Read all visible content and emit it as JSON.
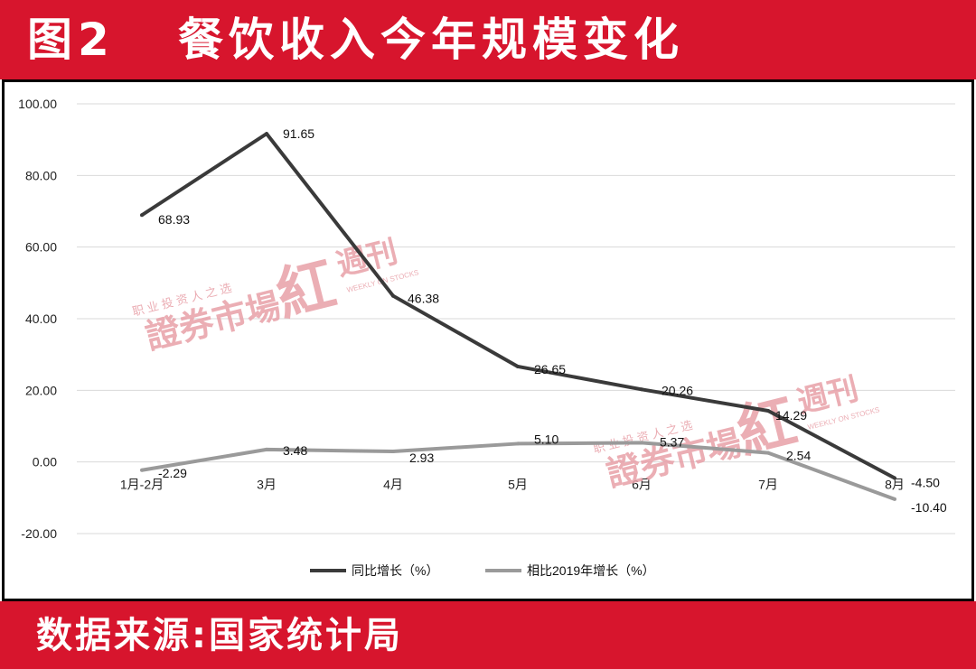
{
  "header": {
    "title": "图2   餐饮收入今年规模变化"
  },
  "footer": {
    "source": "数据来源:国家统计局"
  },
  "colors": {
    "banner": "#d7152d",
    "series1": "#3a3a3a",
    "series2": "#9a9a9a",
    "watermark": "#e8a0a8"
  },
  "watermark": {
    "line1": "职 业 投 资 人 之 选",
    "brand": "證券市場",
    "mark": "紅",
    "weekly": "週刊",
    "english": "WEEKLY ON STOCKS"
  },
  "chart_data": {
    "type": "line",
    "categories": [
      "1月-2月",
      "3月",
      "4月",
      "5月",
      "6月",
      "7月",
      "8月"
    ],
    "series": [
      {
        "name": "同比增长（%）",
        "values": [
          68.93,
          91.65,
          46.38,
          26.65,
          20.26,
          14.29,
          -4.5
        ],
        "labels": [
          "68.93",
          "91.65",
          "46.38",
          "26.65",
          "20.26",
          "14.29",
          "-4.50"
        ]
      },
      {
        "name": "相比2019年增长（%）",
        "values": [
          -2.29,
          3.48,
          2.93,
          5.1,
          5.37,
          2.54,
          -10.4
        ],
        "labels": [
          "-2.29",
          "3.48",
          "2.93",
          "5.10",
          "5.37",
          "2.54",
          "-10.40"
        ]
      }
    ],
    "yticks": [
      "100.00",
      "80.00",
      "60.00",
      "40.00",
      "20.00",
      "0.00",
      "-20.00"
    ],
    "ylim": [
      -20,
      100
    ],
    "grid": true,
    "legend": "bottom-center"
  }
}
